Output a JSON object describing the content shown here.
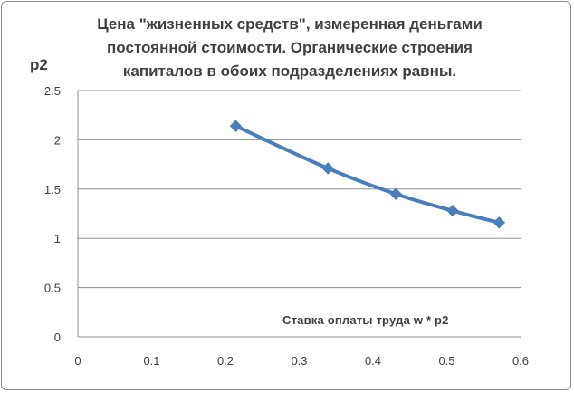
{
  "chart_data": {
    "type": "line",
    "title_lines": [
      "Цена \"жизненных средств\", измеренная деньгами",
      "постоянной стоимости. Органические строения",
      "капиталов в обоих подразделениях равны."
    ],
    "ylabel": "p2",
    "xlabel": "Ставка оплаты труда w * p2",
    "xlim": [
      0,
      0.6
    ],
    "ylim": [
      0,
      2.5
    ],
    "x_ticks": [
      "0",
      "0.1",
      "0.2",
      "0.3",
      "0.4",
      "0.5",
      "0.6"
    ],
    "y_ticks": [
      "0",
      "0.5",
      "1",
      "1.5",
      "2",
      "2.5"
    ],
    "grid": "horizontal",
    "series": [
      {
        "color": "#4a7ebb",
        "marker": "diamond",
        "x": [
          0.214,
          0.339,
          0.431,
          0.508,
          0.571
        ],
        "y": [
          2.14,
          1.71,
          1.45,
          1.28,
          1.16
        ]
      }
    ]
  }
}
